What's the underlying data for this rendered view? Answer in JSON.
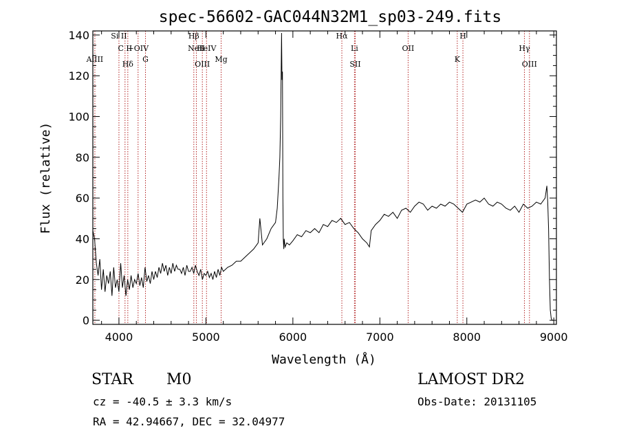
{
  "chart_data": {
    "type": "line",
    "title": "spec-56602-GAC044N32M1_sp03-249.fits",
    "xlabel": "Wavelength (Å)",
    "ylabel": "Flux (relative)",
    "xlim": [
      3700,
      9030
    ],
    "ylim": [
      -2,
      142
    ],
    "x_ticks": [
      4000,
      5000,
      6000,
      7000,
      8000,
      9000
    ],
    "y_ticks": [
      0,
      20,
      40,
      60,
      80,
      100,
      120,
      140
    ],
    "line_color": "#000000",
    "marker_color": "#b22222",
    "series": [
      {
        "x": [
          3700,
          3720,
          3740,
          3760,
          3780,
          3800,
          3820,
          3840,
          3860,
          3880,
          3900,
          3920,
          3940,
          3960,
          3980,
          4000,
          4020,
          4040,
          4060,
          4080,
          4100,
          4120,
          4140,
          4160,
          4180,
          4200,
          4220,
          4240,
          4260,
          4280,
          4300,
          4320,
          4340,
          4360,
          4380,
          4400,
          4420,
          4440,
          4460,
          4480,
          4500,
          4520,
          4540,
          4560,
          4580,
          4600,
          4620,
          4640,
          4660,
          4680,
          4700,
          4720,
          4740,
          4760,
          4780,
          4800,
          4820,
          4840,
          4860,
          4880,
          4900,
          4920,
          4940,
          4960,
          4980,
          5000,
          5020,
          5040,
          5060,
          5080,
          5100,
          5120,
          5140,
          5160,
          5180,
          5200,
          5250,
          5300,
          5350,
          5400,
          5450,
          5500,
          5550,
          5600,
          5620,
          5650,
          5700,
          5750,
          5800,
          5820,
          5840,
          5850,
          5860,
          5870,
          5875,
          5880,
          5885,
          5890,
          5895,
          5900,
          5910,
          5930,
          5960,
          6000,
          6050,
          6100,
          6150,
          6200,
          6250,
          6300,
          6350,
          6400,
          6450,
          6500,
          6550,
          6600,
          6650,
          6700,
          6750,
          6800,
          6850,
          6880,
          6900,
          6950,
          7000,
          7050,
          7100,
          7150,
          7200,
          7250,
          7300,
          7350,
          7400,
          7450,
          7500,
          7550,
          7600,
          7650,
          7700,
          7750,
          7800,
          7850,
          7900,
          7950,
          8000,
          8050,
          8100,
          8150,
          8200,
          8250,
          8300,
          8350,
          8400,
          8450,
          8500,
          8550,
          8600,
          8650,
          8700,
          8750,
          8800,
          8850,
          8900,
          8920,
          8930,
          8940,
          8950,
          8960,
          8970,
          8980,
          8990,
          9000
        ],
        "y": [
          44,
          40,
          28,
          22,
          30,
          15,
          25,
          14,
          22,
          18,
          24,
          12,
          26,
          16,
          20,
          14,
          28,
          16,
          22,
          12,
          20,
          15,
          22,
          16,
          20,
          18,
          23,
          17,
          21,
          16,
          26,
          19,
          22,
          18,
          24,
          20,
          24,
          21,
          26,
          23,
          28,
          24,
          27,
          22,
          26,
          23,
          28,
          24,
          27,
          25,
          25,
          23,
          26,
          22,
          27,
          24,
          24,
          26,
          23,
          27,
          24,
          22,
          25,
          20,
          23,
          22,
          24,
          21,
          23,
          20,
          24,
          21,
          25,
          22,
          26,
          24,
          26,
          27,
          29,
          29,
          31,
          33,
          35,
          38,
          50,
          37,
          40,
          45,
          48,
          55,
          70,
          80,
          100,
          141,
          118,
          122,
          60,
          40,
          35,
          40,
          36,
          38,
          37,
          39,
          42,
          41,
          44,
          43,
          45,
          43,
          47,
          46,
          49,
          48,
          50,
          47,
          48,
          45,
          43,
          40,
          38,
          36,
          44,
          47,
          49,
          52,
          51,
          53,
          50,
          54,
          55,
          53,
          56,
          58,
          57,
          54,
          56,
          55,
          57,
          56,
          58,
          57,
          55,
          53,
          57,
          58,
          59,
          58,
          60,
          57,
          56,
          58,
          57,
          55,
          54,
          56,
          53,
          57,
          55,
          56,
          58,
          57,
          60,
          66,
          58,
          45,
          20,
          5,
          1,
          0,
          0,
          0
        ]
      }
    ],
    "lines": [
      {
        "label": "AlIII",
        "x": 3723
      },
      {
        "label": "Si II",
        "x": 4000
      },
      {
        "label": "C II",
        "x": 4070
      },
      {
        "label": "Hδ",
        "x": 4102
      },
      {
        "label": "+OIV",
        "x": 4220
      },
      {
        "label": "G",
        "x": 4305
      },
      {
        "label": "Hβ",
        "x": 4861
      },
      {
        "label": "NeII",
        "x": 4890
      },
      {
        "label": "OIII",
        "x": 4959
      },
      {
        "label": "HeIV",
        "x": 5007
      },
      {
        "label": "Mg",
        "x": 5175
      },
      {
        "label": "Hα",
        "x": 6563
      },
      {
        "label": "Li",
        "x": 6708
      },
      {
        "label": "SII",
        "x": 6717
      },
      {
        "label": "OII",
        "x": 7325
      },
      {
        "label": "K",
        "x": 7890
      },
      {
        "label": "H",
        "x": 7955
      },
      {
        "label": "Hγ",
        "x": 8662
      },
      {
        "label": "OIII",
        "x": 8720
      }
    ]
  },
  "info": {
    "class": "STAR",
    "subclass": "M0",
    "cz": "cz = -40.5 ± 3.3 km/s",
    "radec": "RA =  42.94667, DEC =  32.04977",
    "survey": "LAMOST DR2",
    "obsdate": "Obs-Date: 20131105"
  }
}
